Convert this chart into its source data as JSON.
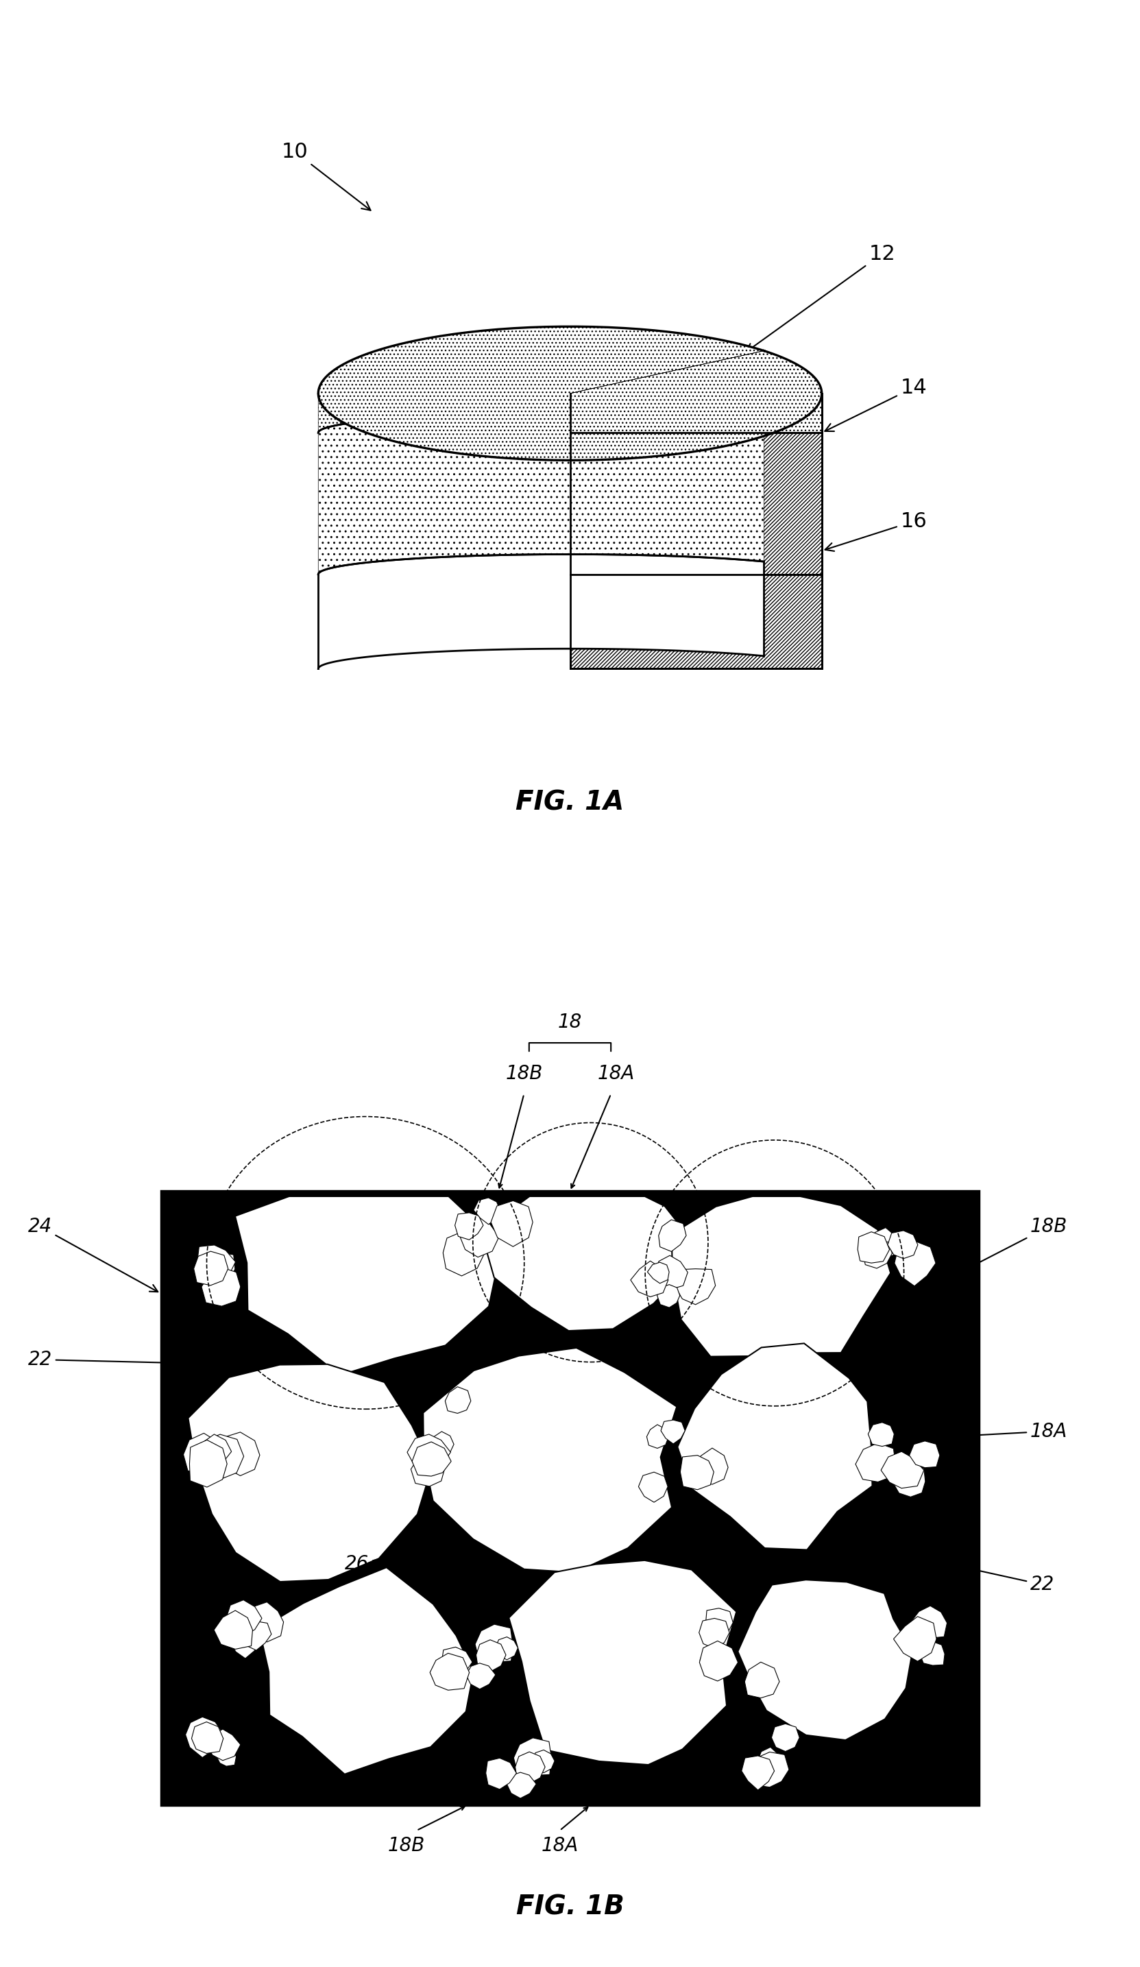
{
  "background_color": "#ffffff",
  "fig_width": 16.63,
  "fig_height": 28.69,
  "label_10": "10",
  "label_12": "12",
  "label_14": "14",
  "label_16": "16",
  "label_18": "18",
  "label_18A_top": "18A",
  "label_18B_top": "18B",
  "label_18A_right": "18A",
  "label_18B_right": "18B",
  "label_18A_bot": "18A",
  "label_18B_bot": "18B",
  "label_22_left": "22",
  "label_22_right": "22",
  "label_24": "24",
  "label_26": "26",
  "fig1a_title": "FIG. 1A",
  "fig1b_title": "FIG. 1B"
}
